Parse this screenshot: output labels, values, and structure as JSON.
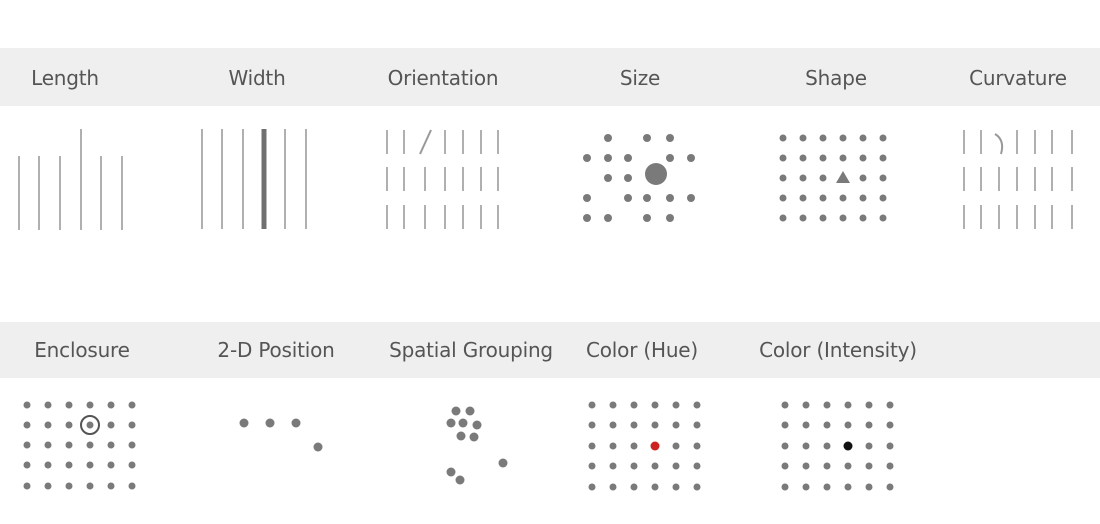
{
  "row1": {
    "labels": [
      "Length",
      "Width",
      "Orientation",
      "Size",
      "Shape",
      "Curvature"
    ]
  },
  "row2": {
    "labels": [
      "Enclosure",
      "2-D Position",
      "Spatial Grouping",
      "Color (Hue)",
      "Color (Intensity)"
    ]
  },
  "colors": {
    "band": "#efefef",
    "mark": "#7a7a7a",
    "line": "#b0b0b0",
    "hue_highlight": "#cc2222",
    "intensity_highlight": "#111111"
  }
}
